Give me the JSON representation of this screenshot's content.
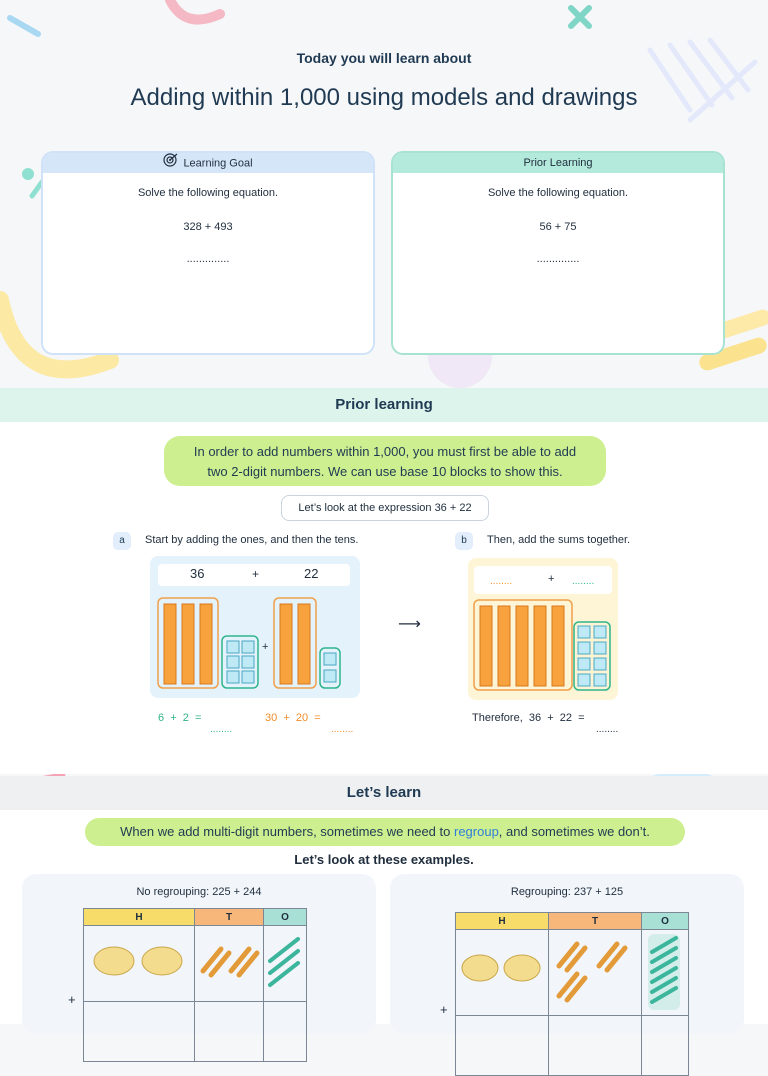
{
  "header": {
    "subtitle": "Today you will learn about",
    "title": "Adding within 1,000 using models and drawings"
  },
  "goal_card": {
    "label": "Learning Goal",
    "instruction": "Solve the following equation.",
    "expression": "328 + 493",
    "answer_blank": "..............",
    "icon": "target-icon"
  },
  "prior_card": {
    "label": "Prior Learning",
    "instruction": "Solve the following equation.",
    "expression": "56 + 75",
    "answer_blank": ".............."
  },
  "prior_section": {
    "heading": "Prior learning",
    "intro_line1": "In order to add numbers within 1,000, you must first be able to add",
    "intro_line2": "two 2-digit numbers. We can use base 10 blocks to show this.",
    "expression_pill": "Let’s look at the expression 36 + 22",
    "step_a_tag": "a",
    "step_a_text": "Start by adding the ones, and then the tens.",
    "step_b_tag": "b",
    "step_b_text": "Then, add the sums together.",
    "num1": "36",
    "plus": "+",
    "num2": "22",
    "ones_eq": "6  +  2  =",
    "tens_eq": "30  +  20  =",
    "blank": "........",
    "therefore": "Therefore,  36  +  22  =",
    "arrow": "⟶"
  },
  "learn_section": {
    "heading": "Let’s learn",
    "intro_before": "When we add multi-digit numbers, sometimes we need to ",
    "intro_keyword": "regroup",
    "intro_after": ", and sometimes we don’t.",
    "examples_label": "Let’s look at these examples.",
    "example1_title": "No regrouping: 225 + 244",
    "example2_title": "Regrouping: 237 + 125",
    "col_h": "H",
    "col_t": "T",
    "col_o": "O",
    "plus_sign": "+"
  },
  "colors": {
    "teal": "#2fb48c",
    "orange": "#f28c28",
    "link_blue": "#2f7fd8",
    "pill_green": "#cdef8f",
    "band_mint": "#dcf4ec"
  }
}
